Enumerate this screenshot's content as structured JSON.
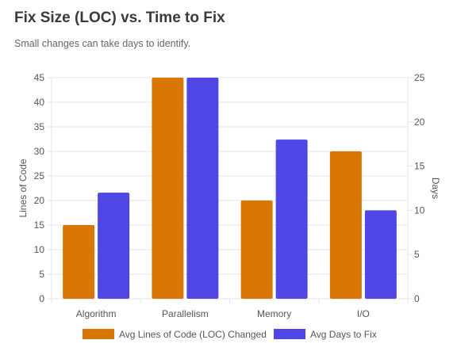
{
  "header": {
    "title": "Fix Size (LOC) vs. Time to Fix",
    "subtitle": "Small changes can take days to identify."
  },
  "colors": {
    "loc": "#d97706",
    "days": "#4f46e5",
    "grid": "#e6e6e6",
    "axis_text": "#555555"
  },
  "chart_data": {
    "type": "bar",
    "title": "Fix Size (LOC) vs. Time to Fix",
    "subtitle": "Small changes can take days to identify.",
    "categories": [
      "Algorithm",
      "Parallelism",
      "Memory",
      "I/O"
    ],
    "series": [
      {
        "name": "Avg Lines of Code (LOC) Changed",
        "axis": "left",
        "values": [
          15,
          45,
          20,
          30
        ]
      },
      {
        "name": "Avg Days to Fix",
        "axis": "right",
        "values": [
          12,
          25,
          18,
          10
        ]
      }
    ],
    "y_left": {
      "label": "Lines of Code",
      "min": 0,
      "max": 45,
      "ticks": [
        0,
        5,
        10,
        15,
        20,
        25,
        30,
        35,
        40,
        45
      ]
    },
    "y_right": {
      "label": "Days",
      "min": 0,
      "max": 25,
      "ticks": [
        0,
        5,
        10,
        15,
        20,
        25
      ]
    },
    "grid": true,
    "legend_position": "bottom"
  }
}
